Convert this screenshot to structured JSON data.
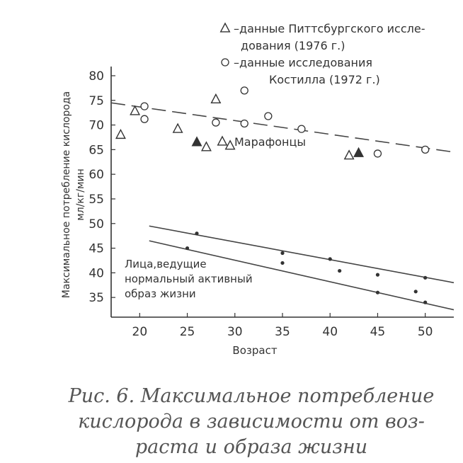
{
  "chart_data": {
    "type": "scatter",
    "xlabel": "Возраст",
    "ylabel": [
      "Максимальное потребление кислорода",
      "мл/кг/мин"
    ],
    "xlim": [
      17,
      53
    ],
    "ylim": [
      31,
      81
    ],
    "x_ticks": [
      20,
      25,
      30,
      35,
      40,
      45,
      50
    ],
    "y_ticks": [
      35,
      40,
      45,
      50,
      55,
      60,
      65,
      70,
      75,
      80
    ],
    "grid": false,
    "legend": {
      "position": "top-right",
      "entries": [
        {
          "marker": "triangle",
          "lines": [
            "–данные Питтсбургского иссле-",
            "дования (1976 г.)"
          ]
        },
        {
          "marker": "circle",
          "lines": [
            "–данные исследования",
            "Костилла (1972 г.)"
          ]
        }
      ]
    },
    "annotations": {
      "marathon": "Марафонцы",
      "normal": [
        "Лица,ведущие",
        "нормальный активный",
        "образ жизни"
      ]
    },
    "series": [
      {
        "name": "данные Питтсбургского исследования (1976 г.)",
        "marker": "triangle-open",
        "points": [
          [
            18,
            68
          ],
          [
            19.5,
            72.8
          ],
          [
            24,
            69.2
          ],
          [
            27,
            65.5
          ],
          [
            28,
            75.2
          ],
          [
            29.5,
            65.8
          ],
          [
            42,
            63.8
          ]
        ]
      },
      {
        "marker": "triangle-filled",
        "points": [
          [
            26,
            66.5
          ],
          [
            43,
            64.3
          ]
        ]
      },
      {
        "name": "данные исследования Костилла (1972 г.)",
        "marker": "circle-open",
        "points": [
          [
            20.5,
            73.8
          ],
          [
            20.5,
            71.2
          ],
          [
            28,
            70.5
          ],
          [
            31,
            77
          ],
          [
            31,
            70.3
          ],
          [
            33.5,
            71.8
          ],
          [
            37,
            69.2
          ],
          [
            45,
            64.2
          ],
          [
            50,
            65
          ]
        ]
      },
      {
        "marker": "dot",
        "points": [
          [
            26,
            48
          ],
          [
            35,
            44
          ],
          [
            40,
            42.8
          ],
          [
            45,
            39.6
          ],
          [
            50,
            39
          ],
          [
            25,
            45
          ],
          [
            35,
            42
          ],
          [
            41,
            40.4
          ],
          [
            45,
            36
          ],
          [
            49,
            36.2
          ],
          [
            50,
            34
          ]
        ]
      }
    ],
    "lines": [
      {
        "style": "dashed",
        "from": [
          17,
          74.5
        ],
        "to": [
          53,
          64.5
        ]
      },
      {
        "style": "solid",
        "from": [
          21,
          49.5
        ],
        "to": [
          53,
          38
        ]
      },
      {
        "style": "solid",
        "from": [
          21,
          46.5
        ],
        "to": [
          53,
          32.5
        ]
      }
    ]
  },
  "caption": [
    "Рис. 6. Максимальное потребление",
    "кислорода в зависимости от воз-",
    "раста и образа жизни"
  ]
}
